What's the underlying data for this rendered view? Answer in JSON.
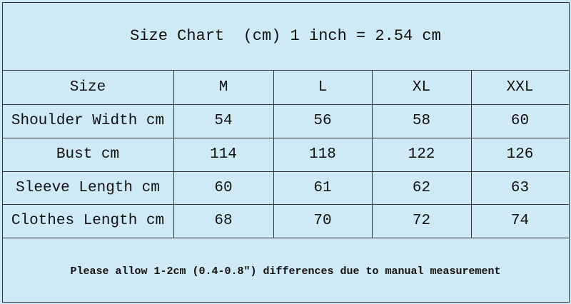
{
  "header": {
    "title": "Size Chart  (cm) 1 inch = 2.54 cm"
  },
  "table": {
    "columns": [
      "Size",
      "M",
      "L",
      "XL",
      "XXL"
    ],
    "rows": [
      [
        "Shoulder Width cm",
        54,
        56,
        58,
        60
      ],
      [
        "Bust cm",
        114,
        118,
        122,
        126
      ],
      [
        "Sleeve Length cm",
        60,
        61,
        62,
        63
      ],
      [
        "Clothes Length cm",
        68,
        70,
        72,
        74
      ]
    ]
  },
  "footer": {
    "note": "Please allow 1-2cm (0.4-0.8″) differences due to manual measurement"
  }
}
